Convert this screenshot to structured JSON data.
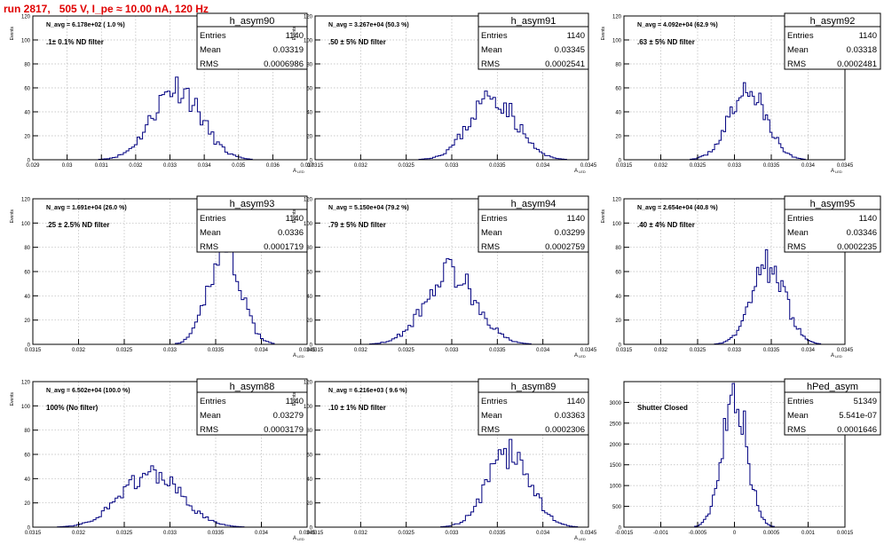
{
  "header": {
    "run_title": "run 2817,   505 V, I_pe ≈ 10.00 nA, 120 Hz"
  },
  "colors": {
    "header": "#e00000",
    "filter_label": "#e000e0",
    "histogram": "#000080",
    "grid": "#b8b8b8",
    "frame": "#000000"
  },
  "stats_labels": {
    "entries": "Entries",
    "mean": "Mean",
    "rms": "RMS"
  },
  "chart_data": [
    {
      "type": "histogram",
      "name": "h_asym90",
      "navg": "N_avg = 6.178e+02 ( 1.0 %)",
      "filter": ".1± 0.1% ND filter",
      "entries": "1140",
      "mean": "0.03319",
      "rms": "0.0006986",
      "xlim": [
        0.029,
        0.037
      ],
      "ylim": [
        0,
        120
      ],
      "xticks": [
        0.029,
        0.03,
        0.031,
        0.032,
        0.033,
        0.034,
        0.035,
        0.036,
        0.037
      ],
      "xtick_labels": [
        "0.029",
        "0.03",
        "0.031",
        "0.032",
        "0.033",
        "0.034",
        "0.035",
        "0.036",
        "0.037"
      ],
      "yticks": [
        0,
        20,
        40,
        60,
        80,
        100,
        120
      ],
      "ytick_labels": [
        "0",
        "20",
        "40",
        "60",
        "80",
        "100",
        "120"
      ],
      "ylabel": "Events",
      "xlabel": "A_LED",
      "peak_mu": 0.03319,
      "peak_sigma": 0.0006986,
      "peak_height": 61,
      "seed": 11
    },
    {
      "type": "histogram",
      "name": "h_asym91",
      "navg": "N_avg = 3.267e+04 (50.3 %)",
      "filter": ".50 ± 5% ND filter",
      "entries": "1140",
      "mean": "0.03345",
      "rms": "0.0002541",
      "xlim": [
        0.0315,
        0.0345
      ],
      "ylim": [
        0,
        120
      ],
      "xticks": [
        0.0315,
        0.032,
        0.0325,
        0.033,
        0.0335,
        0.034,
        0.0345
      ],
      "xtick_labels": [
        "0.0315",
        "0.032",
        "0.0325",
        "0.033",
        "0.0335",
        "0.034",
        "0.0345"
      ],
      "yticks": [
        0,
        20,
        40,
        60,
        80,
        100,
        120
      ],
      "ytick_labels": [
        "0",
        "20",
        "40",
        "60",
        "80",
        "100",
        "120"
      ],
      "ylabel": "Events",
      "xlabel": "A_LED",
      "peak_mu": 0.03345,
      "peak_sigma": 0.0002541,
      "peak_height": 53,
      "seed": 23
    },
    {
      "type": "histogram",
      "name": "h_asym92",
      "navg": "N_avg = 4.092e+04 (62.9 %)",
      "filter": ".63 ± 5% ND filter",
      "entries": "1140",
      "mean": "0.03318",
      "rms": "0.0002481",
      "xlim": [
        0.0315,
        0.0345
      ],
      "ylim": [
        0,
        120
      ],
      "xticks": [
        0.0315,
        0.032,
        0.0325,
        0.033,
        0.0335,
        0.034,
        0.0345
      ],
      "xtick_labels": [
        "0.0315",
        "0.032",
        "0.0325",
        "0.033",
        "0.0335",
        "0.034",
        "0.0345"
      ],
      "yticks": [
        0,
        20,
        40,
        60,
        80,
        100,
        120
      ],
      "ytick_labels": [
        "0",
        "20",
        "40",
        "60",
        "80",
        "100",
        "120"
      ],
      "ylabel": "Events",
      "xlabel": "A_LED",
      "peak_mu": 0.03318,
      "peak_sigma": 0.0002481,
      "peak_height": 58,
      "seed": 37
    },
    {
      "type": "histogram",
      "name": "h_asym93",
      "navg": "N_avg = 1.691e+04 (26.0 %)",
      "filter": ".25 ± 2.5% ND filter",
      "entries": "1140",
      "mean": "0.0336",
      "rms": "0.0001719",
      "xlim": [
        0.0315,
        0.0345
      ],
      "ylim": [
        0,
        120
      ],
      "xticks": [
        0.0315,
        0.032,
        0.0325,
        0.033,
        0.0335,
        0.034,
        0.0345
      ],
      "xtick_labels": [
        "0.0315",
        "0.032",
        "0.0325",
        "0.033",
        "0.0335",
        "0.034",
        "0.0345"
      ],
      "yticks": [
        0,
        20,
        40,
        60,
        80,
        100,
        120
      ],
      "ytick_labels": [
        "0",
        "20",
        "40",
        "60",
        "80",
        "100",
        "120"
      ],
      "ylabel": "Events",
      "xlabel": "A_LED",
      "peak_mu": 0.0336,
      "peak_sigma": 0.0001719,
      "peak_height": 83,
      "seed": 41
    },
    {
      "type": "histogram",
      "name": "h_asym94",
      "navg": "N_avg = 5.150e+04 (79.2 %)",
      "filter": ".79 ± 5% ND filter",
      "entries": "1140",
      "mean": "0.03299",
      "rms": "0.0002759",
      "xlim": [
        0.0315,
        0.0345
      ],
      "ylim": [
        0,
        120
      ],
      "xticks": [
        0.0315,
        0.032,
        0.0325,
        0.033,
        0.0335,
        0.034,
        0.0345
      ],
      "xtick_labels": [
        "0.0315",
        "0.032",
        "0.0325",
        "0.033",
        "0.0335",
        "0.034",
        "0.0345"
      ],
      "yticks": [
        0,
        20,
        40,
        60,
        80,
        100,
        120
      ],
      "ytick_labels": [
        "0",
        "20",
        "40",
        "60",
        "80",
        "100",
        "120"
      ],
      "ylabel": "Events",
      "xlabel": "A_LED",
      "peak_mu": 0.03299,
      "peak_sigma": 0.0002759,
      "peak_height": 60,
      "seed": 53
    },
    {
      "type": "histogram",
      "name": "h_asym95",
      "navg": "N_avg = 2.654e+04 (40.8 %)",
      "filter": ".40 ± 4% ND filter",
      "entries": "1140",
      "mean": "0.03346",
      "rms": "0.0002235",
      "xlim": [
        0.0315,
        0.0345
      ],
      "ylim": [
        0,
        120
      ],
      "xticks": [
        0.0315,
        0.032,
        0.0325,
        0.033,
        0.0335,
        0.034,
        0.0345
      ],
      "xtick_labels": [
        "0.0315",
        "0.032",
        "0.0325",
        "0.033",
        "0.0335",
        "0.034",
        "0.0345"
      ],
      "yticks": [
        0,
        20,
        40,
        60,
        80,
        100,
        120
      ],
      "ytick_labels": [
        "0",
        "20",
        "40",
        "60",
        "80",
        "100",
        "120"
      ],
      "ylabel": "Events",
      "xlabel": "A_LED",
      "peak_mu": 0.03346,
      "peak_sigma": 0.0002235,
      "peak_height": 65,
      "seed": 67
    },
    {
      "type": "histogram",
      "name": "h_asym88",
      "navg": "N_avg = 6.502e+04 (100.0 %)",
      "filter": "100% (No filter)",
      "entries": "1140",
      "mean": "0.03279",
      "rms": "0.0003179",
      "xlim": [
        0.0315,
        0.0345
      ],
      "ylim": [
        0,
        120
      ],
      "xticks": [
        0.0315,
        0.032,
        0.0325,
        0.033,
        0.0335,
        0.034,
        0.0345
      ],
      "xtick_labels": [
        "0.0315",
        "0.032",
        "0.0325",
        "0.033",
        "0.0335",
        "0.034",
        "0.0345"
      ],
      "yticks": [
        0,
        20,
        40,
        60,
        80,
        100,
        120
      ],
      "ytick_labels": [
        "0",
        "20",
        "40",
        "60",
        "80",
        "100",
        "120"
      ],
      "ylabel": "Events",
      "xlabel": "A_LED",
      "peak_mu": 0.03279,
      "peak_sigma": 0.0003179,
      "peak_height": 45,
      "seed": 71
    },
    {
      "type": "histogram",
      "name": "h_asym89",
      "navg": "N_avg = 6.216e+03 ( 9.6 %)",
      "filter": ".10 ± 1% ND filter",
      "entries": "1140",
      "mean": "0.03363",
      "rms": "0.0002306",
      "xlim": [
        0.0315,
        0.0345
      ],
      "ylim": [
        0,
        120
      ],
      "xticks": [
        0.0315,
        0.032,
        0.0325,
        0.033,
        0.0335,
        0.034,
        0.0345
      ],
      "xtick_labels": [
        "0.0315",
        "0.032",
        "0.0325",
        "0.033",
        "0.0335",
        "0.034",
        "0.0345"
      ],
      "yticks": [
        0,
        20,
        40,
        60,
        80,
        100,
        120
      ],
      "ytick_labels": [
        "0",
        "20",
        "40",
        "60",
        "80",
        "100",
        "120"
      ],
      "ylabel": "Events",
      "xlabel": "A_LED",
      "peak_mu": 0.03363,
      "peak_sigma": 0.0002306,
      "peak_height": 62,
      "seed": 83
    },
    {
      "type": "histogram",
      "name": "hPed_asym",
      "navg": "",
      "filter": "Shutter Closed",
      "entries": "51349",
      "mean": "5.541e-07",
      "rms": "0.0001646",
      "xlim": [
        -0.0015,
        0.0015
      ],
      "ylim": [
        0,
        3500
      ],
      "xticks": [
        -0.0015,
        -0.001,
        -0.0005,
        0,
        0.0005,
        0.001,
        0.0015
      ],
      "xtick_labels": [
        "-0.0015",
        "-0.001",
        "-0.0005",
        "0",
        "0.0005",
        "0.001",
        "0.0015"
      ],
      "yticks": [
        0,
        500,
        1000,
        1500,
        2000,
        2500,
        3000
      ],
      "ytick_labels": [
        "0",
        "500",
        "1000",
        "1500",
        "2000",
        "2500",
        "3000"
      ],
      "ylabel": "",
      "xlabel": "",
      "peak_mu": 0.0,
      "peak_sigma": 0.0001646,
      "peak_height": 3300,
      "seed": 97
    }
  ]
}
